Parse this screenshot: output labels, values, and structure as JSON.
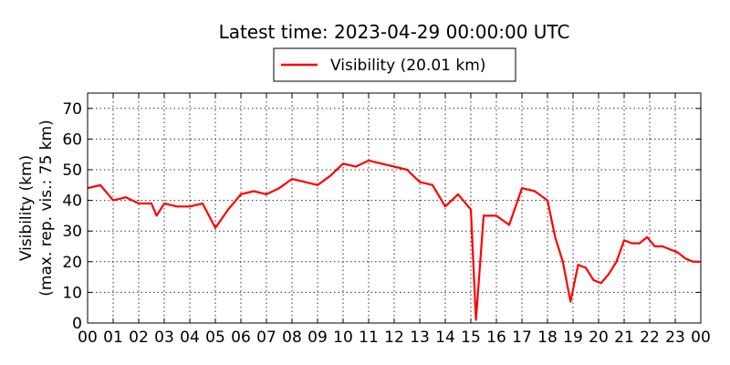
{
  "chart_data": {
    "type": "line",
    "title": "Latest time: 2023-04-29 00:00:00 UTC",
    "ylabel": "Visibility (km)",
    "ylabel2": "(max. rep. vis.: 75 km)",
    "xlabel": "",
    "xlim": [
      0,
      24
    ],
    "ylim": [
      0,
      75
    ],
    "grid": true,
    "legend_position": "top-center",
    "x_ticks": [
      "00",
      "01",
      "02",
      "03",
      "04",
      "05",
      "06",
      "07",
      "08",
      "09",
      "10",
      "11",
      "12",
      "13",
      "14",
      "15",
      "16",
      "17",
      "18",
      "19",
      "20",
      "21",
      "22",
      "23",
      "00"
    ],
    "y_ticks": [
      0,
      10,
      20,
      30,
      40,
      50,
      60,
      70
    ],
    "series": [
      {
        "name": "Visibility (20.01 km)",
        "color": "#ff0000",
        "x": [
          0,
          0.5,
          1.0,
          1.5,
          2.0,
          2.5,
          2.7,
          3.0,
          3.5,
          4.0,
          4.5,
          5.0,
          5.5,
          6.0,
          6.5,
          7.0,
          7.5,
          8.0,
          8.5,
          9.0,
          9.5,
          10.0,
          10.5,
          11.0,
          11.5,
          12.0,
          12.5,
          13.0,
          13.5,
          14.0,
          14.5,
          15.0,
          15.2,
          15.5,
          16.0,
          16.5,
          17.0,
          17.5,
          18.0,
          18.3,
          18.6,
          18.9,
          19.2,
          19.5,
          19.8,
          20.1,
          20.4,
          20.7,
          21.0,
          21.3,
          21.6,
          21.9,
          22.2,
          22.5,
          22.8,
          23.1,
          23.4,
          23.7,
          24.0
        ],
        "y": [
          44,
          45,
          40,
          41,
          39,
          39,
          35,
          39,
          38,
          38,
          39,
          31,
          37,
          42,
          43,
          42,
          44,
          47,
          46,
          45,
          48,
          52,
          51,
          53,
          52,
          51,
          50,
          46,
          45,
          38,
          42,
          37,
          1,
          35,
          35,
          32,
          44,
          43,
          40,
          28,
          20,
          7,
          19,
          18,
          14,
          13,
          16,
          20,
          27,
          26,
          26,
          28,
          25,
          25,
          24,
          23,
          21,
          20,
          20
        ]
      }
    ]
  }
}
